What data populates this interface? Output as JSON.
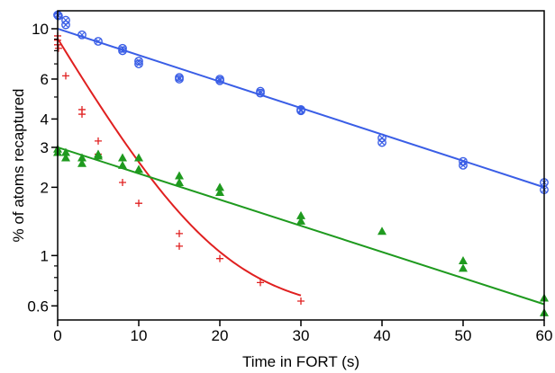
{
  "chart_data": {
    "type": "scatter",
    "xlabel": "Time in FORT (s)",
    "ylabel": "% of atoms recaptured",
    "xlim": [
      0,
      60
    ],
    "ylim": [
      0.52,
      12
    ],
    "yscale": "log",
    "grid": false,
    "x_ticks": [
      0,
      10,
      20,
      30,
      40,
      50,
      60
    ],
    "x_tick_labels": [
      "0",
      "10",
      "20",
      "30",
      "40",
      "50",
      "60"
    ],
    "y_major_ticks": [
      0.6,
      1,
      2,
      3,
      4,
      6,
      10
    ],
    "y_major_tick_labels": [
      "0.6",
      "1",
      "2",
      "3",
      "4",
      "6",
      "10"
    ],
    "y_minor_ticks": [
      0.7,
      0.8,
      0.9,
      5,
      7,
      8,
      9
    ],
    "series": [
      {
        "marker": "circle-x",
        "color": "#3a5ee6",
        "points": [
          [
            0,
            11.5
          ],
          [
            0.1,
            11.4
          ],
          [
            1,
            10.9
          ],
          [
            1,
            10.4
          ],
          [
            3,
            9.4
          ],
          [
            5,
            8.8
          ],
          [
            8,
            8.2
          ],
          [
            8,
            8.0
          ],
          [
            10,
            7.2
          ],
          [
            10,
            7.0
          ],
          [
            15,
            6.1
          ],
          [
            15,
            6.0
          ],
          [
            20,
            6.0
          ],
          [
            20,
            5.9
          ],
          [
            25,
            5.3
          ],
          [
            25,
            5.2
          ],
          [
            30,
            4.4
          ],
          [
            30,
            4.35
          ],
          [
            40,
            3.3
          ],
          [
            40,
            3.15
          ],
          [
            50,
            2.6
          ],
          [
            50,
            2.5
          ],
          [
            60,
            2.1
          ],
          [
            60,
            1.95
          ]
        ],
        "fit_line": {
          "x0": 0,
          "y0": 10.0,
          "x1": 60,
          "y1": 2.0
        }
      },
      {
        "marker": "plus",
        "color": "#e02020",
        "points": [
          [
            0,
            9.3
          ],
          [
            0,
            8.9
          ],
          [
            0,
            8.5
          ],
          [
            0.1,
            8.2
          ],
          [
            1,
            6.2
          ],
          [
            3,
            4.4
          ],
          [
            3,
            4.2
          ],
          [
            5,
            3.2
          ],
          [
            5,
            2.8
          ],
          [
            8,
            2.1
          ],
          [
            10,
            1.7
          ],
          [
            15,
            1.25
          ],
          [
            15,
            1.1
          ],
          [
            20,
            0.97
          ],
          [
            25,
            0.76
          ],
          [
            30,
            0.63
          ]
        ],
        "fit_curve": {
          "type": "exponential_decay_plus_offset",
          "x_range": [
            0,
            30
          ],
          "a": 8.5,
          "tau": 7.0,
          "c": 0.55
        }
      },
      {
        "marker": "triangle",
        "color": "#1f9a1f",
        "points": [
          [
            0,
            2.95
          ],
          [
            0,
            2.85
          ],
          [
            1,
            2.85
          ],
          [
            1,
            2.7
          ],
          [
            3,
            2.7
          ],
          [
            3,
            2.55
          ],
          [
            5,
            2.8
          ],
          [
            5,
            2.75
          ],
          [
            8,
            2.7
          ],
          [
            8,
            2.5
          ],
          [
            10,
            2.7
          ],
          [
            10,
            2.4
          ],
          [
            15,
            2.25
          ],
          [
            15,
            2.1
          ],
          [
            20,
            2.0
          ],
          [
            20,
            1.9
          ],
          [
            30,
            1.5
          ],
          [
            30,
            1.42
          ],
          [
            40,
            1.28
          ],
          [
            50,
            0.95
          ],
          [
            50,
            0.88
          ],
          [
            60,
            0.65
          ],
          [
            60,
            0.56
          ]
        ],
        "fit_line": {
          "x0": 0,
          "y0": 3.0,
          "x1": 60,
          "y1": 0.61
        }
      }
    ]
  }
}
